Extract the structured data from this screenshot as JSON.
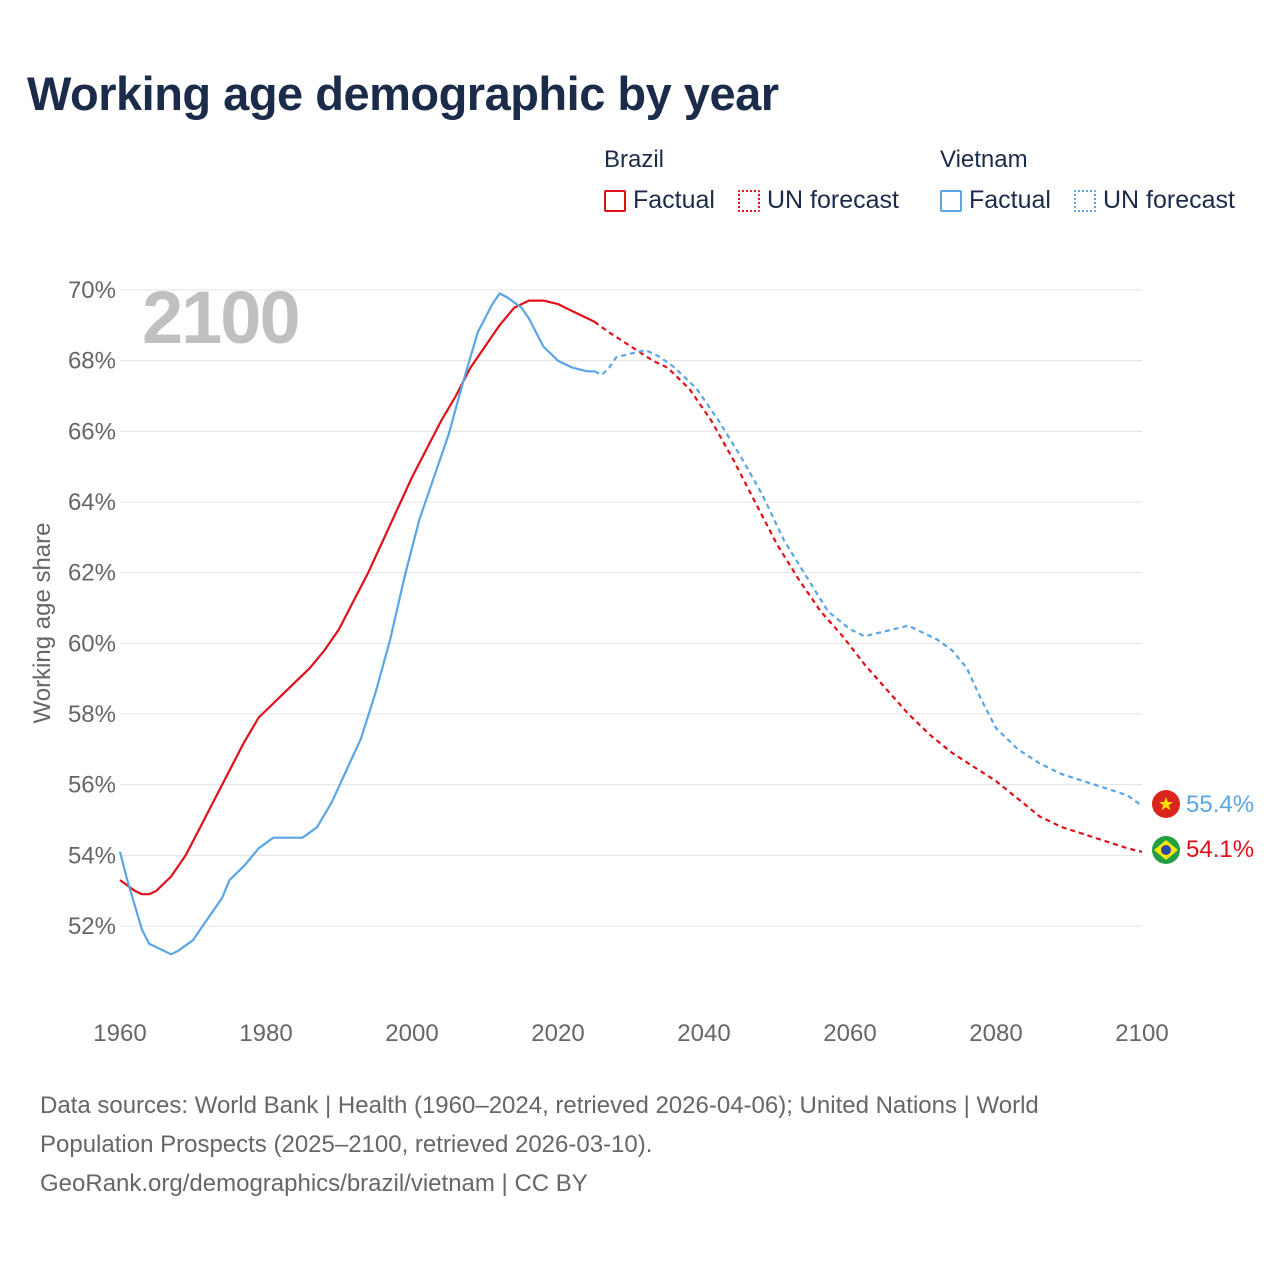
{
  "title": "Working age demographic by year",
  "legend": {
    "groups": [
      {
        "name": "Brazil",
        "color": "#e0101a",
        "factual_label": "Factual",
        "forecast_label": "UN forecast"
      },
      {
        "name": "Vietnam",
        "color": "#5aa5e6",
        "factual_label": "Factual",
        "forecast_label": "UN forecast"
      }
    ]
  },
  "year_watermark": "2100",
  "end_labels": {
    "vietnam": "55.4%",
    "brazil": "54.1%"
  },
  "sources": {
    "line1": "Data sources: World Bank | Health (1960–2024, retrieved 2026-04-06); United Nations | World",
    "line2": "Population Prospects (2025–2100, retrieved 2026-03-10).",
    "line3": "GeoRank.org/demographics/brazil/vietnam | CC BY"
  },
  "chart_data": {
    "type": "line",
    "title": "Working age demographic by year",
    "xlabel": "",
    "ylabel": "Working age share",
    "xlim": [
      1960,
      2100
    ],
    "ylim": [
      50,
      70
    ],
    "x_ticks": [
      1960,
      1980,
      2000,
      2020,
      2040,
      2060,
      2080,
      2100
    ],
    "y_ticks": [
      52,
      54,
      56,
      58,
      60,
      62,
      64,
      66,
      68,
      70
    ],
    "y_tick_labels": [
      "52%",
      "54%",
      "56%",
      "58%",
      "60%",
      "62%",
      "64%",
      "66%",
      "68%",
      "70%"
    ],
    "factual_end_year": 2025,
    "series": [
      {
        "name": "Brazil",
        "color": "#e0101a",
        "points": [
          [
            1960,
            53.3
          ],
          [
            1962,
            53.0
          ],
          [
            1963,
            52.9
          ],
          [
            1964,
            52.9
          ],
          [
            1965,
            53.0
          ],
          [
            1967,
            53.4
          ],
          [
            1969,
            54.0
          ],
          [
            1971,
            54.8
          ],
          [
            1973,
            55.6
          ],
          [
            1975,
            56.4
          ],
          [
            1977,
            57.2
          ],
          [
            1979,
            57.9
          ],
          [
            1980,
            58.1
          ],
          [
            1982,
            58.5
          ],
          [
            1984,
            58.9
          ],
          [
            1986,
            59.3
          ],
          [
            1988,
            59.8
          ],
          [
            1990,
            60.4
          ],
          [
            1992,
            61.2
          ],
          [
            1994,
            62.0
          ],
          [
            1996,
            62.9
          ],
          [
            1998,
            63.8
          ],
          [
            2000,
            64.7
          ],
          [
            2002,
            65.5
          ],
          [
            2004,
            66.3
          ],
          [
            2006,
            67.0
          ],
          [
            2008,
            67.8
          ],
          [
            2010,
            68.4
          ],
          [
            2012,
            69.0
          ],
          [
            2014,
            69.5
          ],
          [
            2016,
            69.7
          ],
          [
            2018,
            69.7
          ],
          [
            2020,
            69.6
          ],
          [
            2022,
            69.4
          ],
          [
            2024,
            69.2
          ],
          [
            2025,
            69.1
          ],
          [
            2027,
            68.8
          ],
          [
            2030,
            68.4
          ],
          [
            2033,
            68.0
          ],
          [
            2035,
            67.8
          ],
          [
            2038,
            67.2
          ],
          [
            2041,
            66.3
          ],
          [
            2044,
            65.2
          ],
          [
            2047,
            64.0
          ],
          [
            2050,
            62.8
          ],
          [
            2053,
            61.8
          ],
          [
            2056,
            60.9
          ],
          [
            2059,
            60.2
          ],
          [
            2062,
            59.4
          ],
          [
            2065,
            58.7
          ],
          [
            2068,
            58.0
          ],
          [
            2071,
            57.4
          ],
          [
            2074,
            56.9
          ],
          [
            2077,
            56.5
          ],
          [
            2080,
            56.1
          ],
          [
            2083,
            55.6
          ],
          [
            2086,
            55.1
          ],
          [
            2089,
            54.8
          ],
          [
            2092,
            54.6
          ],
          [
            2095,
            54.4
          ],
          [
            2098,
            54.2
          ],
          [
            2100,
            54.1
          ]
        ]
      },
      {
        "name": "Vietnam",
        "color": "#5aa5e6",
        "points": [
          [
            1960,
            54.1
          ],
          [
            1961,
            53.3
          ],
          [
            1962,
            52.6
          ],
          [
            1963,
            51.9
          ],
          [
            1964,
            51.5
          ],
          [
            1966,
            51.3
          ],
          [
            1967,
            51.2
          ],
          [
            1968,
            51.3
          ],
          [
            1970,
            51.6
          ],
          [
            1972,
            52.2
          ],
          [
            1974,
            52.8
          ],
          [
            1975,
            53.3
          ],
          [
            1977,
            53.7
          ],
          [
            1979,
            54.2
          ],
          [
            1981,
            54.5
          ],
          [
            1983,
            54.5
          ],
          [
            1985,
            54.5
          ],
          [
            1987,
            54.8
          ],
          [
            1989,
            55.5
          ],
          [
            1991,
            56.4
          ],
          [
            1993,
            57.3
          ],
          [
            1995,
            58.6
          ],
          [
            1997,
            60.1
          ],
          [
            1999,
            61.9
          ],
          [
            2001,
            63.5
          ],
          [
            2003,
            64.7
          ],
          [
            2005,
            65.9
          ],
          [
            2007,
            67.4
          ],
          [
            2009,
            68.8
          ],
          [
            2011,
            69.6
          ],
          [
            2012,
            69.9
          ],
          [
            2013,
            69.8
          ],
          [
            2015,
            69.5
          ],
          [
            2016,
            69.2
          ],
          [
            2018,
            68.4
          ],
          [
            2020,
            68.0
          ],
          [
            2022,
            67.8
          ],
          [
            2024,
            67.7
          ],
          [
            2025,
            67.7
          ],
          [
            2026,
            67.6
          ],
          [
            2027,
            67.8
          ],
          [
            2028,
            68.1
          ],
          [
            2030,
            68.2
          ],
          [
            2032,
            68.3
          ],
          [
            2034,
            68.1
          ],
          [
            2036,
            67.8
          ],
          [
            2039,
            67.2
          ],
          [
            2042,
            66.3
          ],
          [
            2045,
            65.3
          ],
          [
            2048,
            64.2
          ],
          [
            2051,
            62.9
          ],
          [
            2054,
            61.9
          ],
          [
            2057,
            60.9
          ],
          [
            2060,
            60.4
          ],
          [
            2062,
            60.2
          ],
          [
            2064,
            60.3
          ],
          [
            2066,
            60.4
          ],
          [
            2068,
            60.5
          ],
          [
            2070,
            60.3
          ],
          [
            2072,
            60.1
          ],
          [
            2074,
            59.8
          ],
          [
            2076,
            59.3
          ],
          [
            2078,
            58.4
          ],
          [
            2080,
            57.6
          ],
          [
            2083,
            57.0
          ],
          [
            2086,
            56.6
          ],
          [
            2089,
            56.3
          ],
          [
            2092,
            56.1
          ],
          [
            2095,
            55.9
          ],
          [
            2098,
            55.7
          ],
          [
            2100,
            55.4
          ]
        ]
      }
    ]
  }
}
